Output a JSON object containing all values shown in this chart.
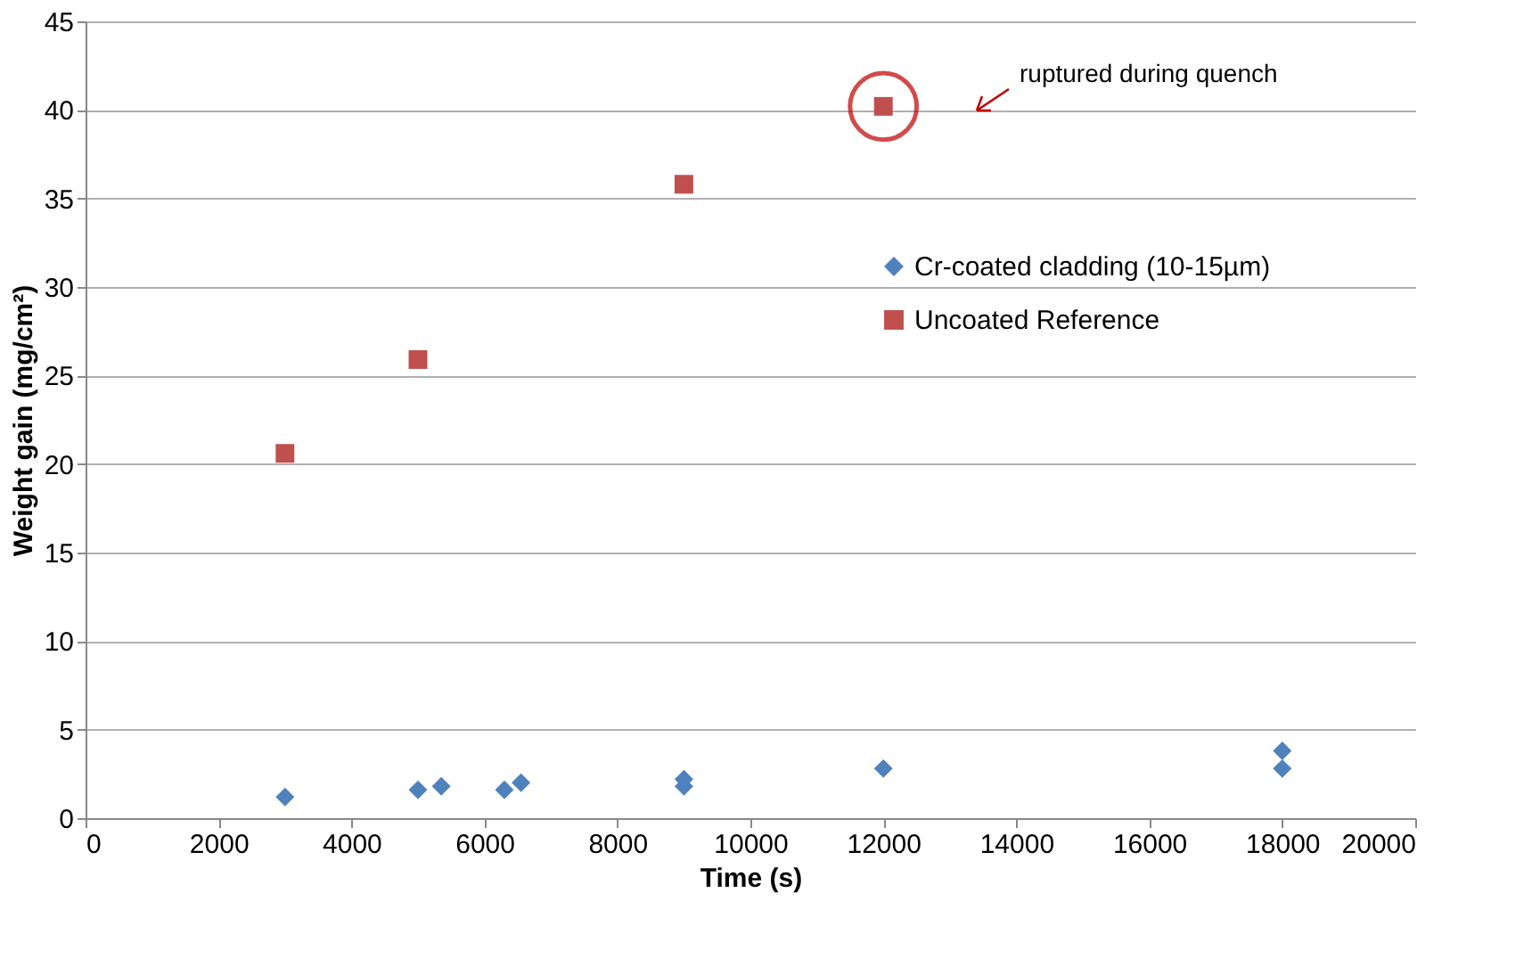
{
  "chart_data": {
    "type": "scatter",
    "xlabel": "Time (s)",
    "ylabel": "Weight gain (mg/cm²)",
    "xlim": [
      0,
      20000
    ],
    "xticks": [
      0,
      2000,
      4000,
      6000,
      8000,
      10000,
      12000,
      14000,
      16000,
      18000,
      20000
    ],
    "ylim": [
      0,
      45
    ],
    "yticks": [
      0,
      5,
      10,
      15,
      20,
      25,
      30,
      35,
      40,
      45
    ],
    "grid": "y",
    "legend": "top right",
    "series": [
      {
        "name": "Cr-coated cladding (10-15µm)",
        "color": "#4f81bd",
        "marker": "diamond",
        "x": [
          3000,
          5000,
          5350,
          6300,
          6550,
          9000,
          9000,
          12000,
          18000,
          18000
        ],
        "values": [
          1.2,
          1.6,
          1.8,
          1.6,
          2.0,
          2.2,
          1.8,
          2.8,
          3.8,
          2.8
        ]
      },
      {
        "name": "Uncoated Reference",
        "color": "#c0504d",
        "marker": "square",
        "x": [
          3000,
          5000,
          9000,
          12000
        ],
        "values": [
          20.6,
          25.9,
          35.8,
          40.2
        ]
      }
    ],
    "annotations": [
      "ruptured during quench"
    ]
  }
}
